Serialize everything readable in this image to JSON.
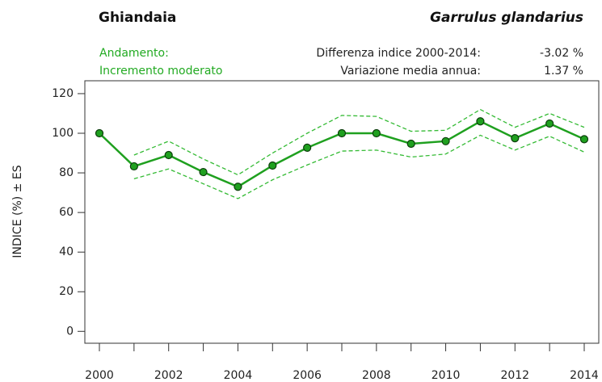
{
  "header": {
    "common_name": "Ghiandaia",
    "scientific_name": "Garrulus glandarius",
    "trend_label": "Andamento:",
    "trend_value": "Incremento moderato",
    "stats": [
      {
        "label": "Differenza indice 2000-2014:",
        "value": "-3.02 %"
      },
      {
        "label": "Variazione media annua:",
        "value": "1.37 %"
      }
    ]
  },
  "chart_data": {
    "type": "line",
    "ylabel": "INDICE (%) ± ES",
    "x": [
      2000,
      2001,
      2002,
      2003,
      2004,
      2005,
      2006,
      2007,
      2008,
      2009,
      2010,
      2011,
      2012,
      2013,
      2014
    ],
    "series": [
      {
        "name": "Indice",
        "color": "#1fa01f",
        "style": "solid",
        "markers": true,
        "values": [
          100,
          83.3,
          89,
          80.4,
          73,
          83.7,
          92.7,
          100,
          100,
          94.7,
          96,
          106,
          97.5,
          104.9,
          97
        ]
      },
      {
        "name": "+ES",
        "color": "#35bb35",
        "style": "dashed",
        "markers": false,
        "values": [
          null,
          89,
          96,
          87,
          79,
          90,
          100,
          109,
          108.5,
          101,
          101.5,
          112,
          103,
          110,
          103
        ]
      },
      {
        "name": "-ES",
        "color": "#35bb35",
        "style": "dashed",
        "markers": false,
        "values": [
          null,
          77,
          82,
          74.5,
          67,
          76.5,
          84,
          91,
          91.5,
          88,
          89.5,
          99,
          91.5,
          98.5,
          90.5
        ]
      }
    ],
    "xlim": [
      1999.58,
      2014.42
    ],
    "ylim": [
      -6,
      126.5
    ],
    "xticks": [
      2000,
      2002,
      2004,
      2006,
      2008,
      2010,
      2012,
      2014
    ],
    "xminorticks": [
      2001,
      2003,
      2005,
      2007,
      2009,
      2011,
      2013
    ],
    "yticks": [
      0,
      20,
      40,
      60,
      80,
      100,
      120
    ]
  }
}
